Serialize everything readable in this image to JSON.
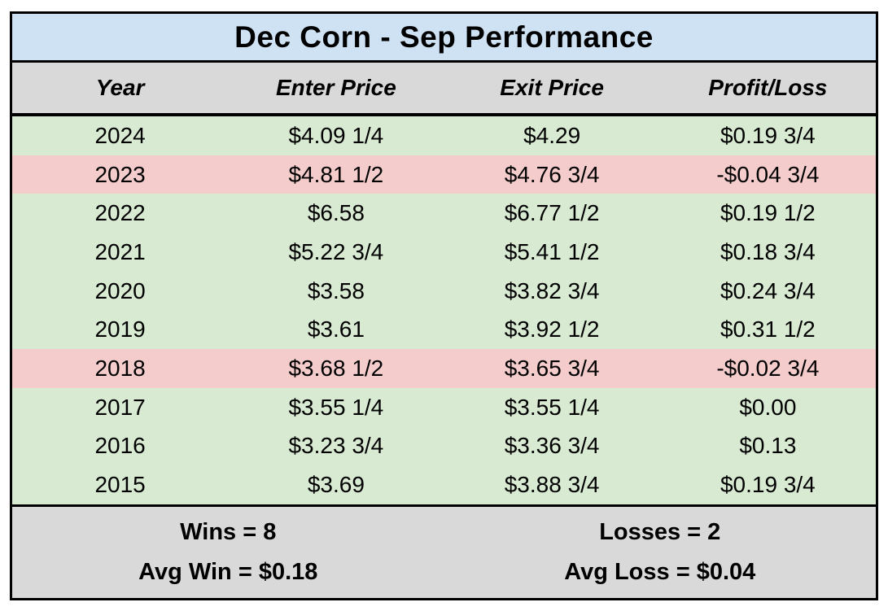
{
  "chart_data": {
    "type": "table",
    "title": "Dec Corn - Sep Performance",
    "columns": [
      "Year",
      "Enter Price",
      "Exit Price",
      "Profit/Loss"
    ],
    "rows": [
      {
        "status": "win",
        "cells": [
          "2024",
          "$4.09 1/4",
          "$4.29",
          "$0.19 3/4"
        ]
      },
      {
        "status": "loss",
        "cells": [
          "2023",
          "$4.81 1/2",
          "$4.76 3/4",
          "-$0.04 3/4"
        ]
      },
      {
        "status": "win",
        "cells": [
          "2022",
          "$6.58",
          "$6.77 1/2",
          "$0.19 1/2"
        ]
      },
      {
        "status": "win",
        "cells": [
          "2021",
          "$5.22 3/4",
          "$5.41 1/2",
          "$0.18 3/4"
        ]
      },
      {
        "status": "win",
        "cells": [
          "2020",
          "$3.58",
          "$3.82 3/4",
          "$0.24 3/4"
        ]
      },
      {
        "status": "win",
        "cells": [
          "2019",
          "$3.61",
          "$3.92 1/2",
          "$0.31 1/2"
        ]
      },
      {
        "status": "loss",
        "cells": [
          "2018",
          "$3.68 1/2",
          "$3.65 3/4",
          "-$0.02 3/4"
        ]
      },
      {
        "status": "win",
        "cells": [
          "2017",
          "$3.55 1/4",
          "$3.55 1/4",
          "$0.00"
        ]
      },
      {
        "status": "win",
        "cells": [
          "2016",
          "$3.23 3/4",
          "$3.36 3/4",
          "$0.13"
        ]
      },
      {
        "status": "win",
        "cells": [
          "2015",
          "$3.69",
          "$3.88 3/4",
          "$0.19 3/4"
        ]
      }
    ],
    "summary": {
      "wins": "Wins = 8",
      "losses": "Losses = 2",
      "avg_win": "Avg Win = $0.18",
      "avg_loss": "Avg Loss = $0.04"
    }
  },
  "colors": {
    "title_bg": "#cfe2f3",
    "header_bg": "#d9d9d9",
    "win_bg": "#d9ead3",
    "loss_bg": "#f4cccc",
    "footer_bg": "#d9d9d9",
    "border": "#000000"
  }
}
